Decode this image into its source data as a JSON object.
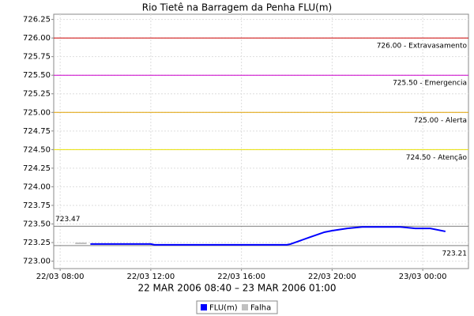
{
  "chart_data": {
    "type": "line",
    "title": "Rio Tietê na Barragem da Penha FLU(m)",
    "subtitle": "22 MAR 2006 08:40 – 23 MAR 2006 01:00",
    "series": [
      {
        "name": "FLU(m)",
        "color": "#0000ff",
        "x": [
          "22/03 09:20",
          "22/03 12:00",
          "22/03 12:10",
          "22/03 18:00",
          "22/03 18:10",
          "22/03 19:00",
          "22/03 19:40",
          "22/03 20:00",
          "22/03 20:40",
          "22/03 21:20",
          "22/03 23:00",
          "22/03 23:40",
          "23/03 00:20",
          "23/03 01:00"
        ],
        "values": [
          723.23,
          723.23,
          723.22,
          723.22,
          723.23,
          723.32,
          723.39,
          723.41,
          723.44,
          723.46,
          723.46,
          723.44,
          723.44,
          723.4
        ]
      },
      {
        "name": "Falha",
        "color": "#c0c0c0",
        "x": [
          "22/03 08:40",
          "22/03 09:10"
        ],
        "values": [
          723.24,
          723.24
        ]
      }
    ],
    "thresholds": [
      {
        "value": 726,
        "label": "726.00 - Extravasamento",
        "color": "#cc0000"
      },
      {
        "value": 725.5,
        "label": "725.50 - Emergencia",
        "color": "#cc00cc"
      },
      {
        "value": 725,
        "label": "725.00 - Alerta",
        "color": "#e0a000"
      },
      {
        "value": 724.5,
        "label": "724.50 - Atenção",
        "color": "#e8e000"
      }
    ],
    "markers": [
      {
        "value": 723.47,
        "label": "723.47",
        "color": "#808080"
      },
      {
        "value": 723.21,
        "label": "723.21",
        "color": "#808080"
      }
    ],
    "xlim": [
      "22/03 07:43",
      "23/03 02:01"
    ],
    "xticks": [
      "22/03 08:00",
      "22/03 12:00",
      "22/03 16:00",
      "22/03 20:00",
      "23/03 00:00"
    ],
    "ylim": [
      722.9,
      726.32
    ],
    "yticks": [
      {
        "value": 723,
        "label": "723.00"
      },
      {
        "value": 723.25,
        "label": "723.25"
      },
      {
        "value": 723.5,
        "label": "723.50"
      },
      {
        "value": 723.75,
        "label": "723.75"
      },
      {
        "value": 724,
        "label": "724.00"
      },
      {
        "value": 724.25,
        "label": "724.25"
      },
      {
        "value": 724.5,
        "label": "724.50"
      },
      {
        "value": 724.75,
        "label": "724.75"
      },
      {
        "value": 725,
        "label": "725.00"
      },
      {
        "value": 725.25,
        "label": "725.25"
      },
      {
        "value": 725.5,
        "label": "725.50"
      },
      {
        "value": 725.75,
        "label": "725.75"
      },
      {
        "value": 726,
        "label": "726.00"
      },
      {
        "value": 726.25,
        "label": "726.25"
      }
    ],
    "grid": true
  }
}
